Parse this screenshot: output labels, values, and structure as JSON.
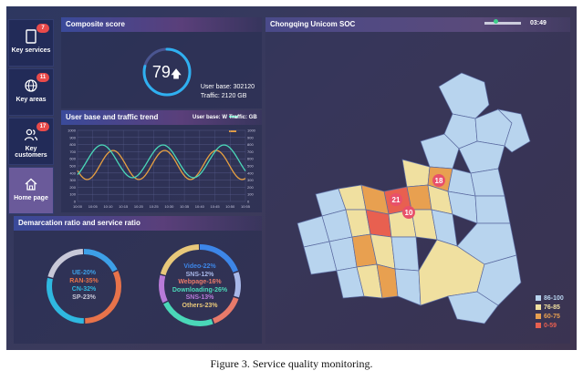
{
  "nav": {
    "items": [
      {
        "label": "Key services",
        "badge": "7"
      },
      {
        "label": "Key areas",
        "badge": "11"
      },
      {
        "label": "Key customers",
        "badge": "17"
      },
      {
        "label": "Home page",
        "badge": ""
      }
    ]
  },
  "composite": {
    "title": "Composite score",
    "score": "79",
    "score_fraction": 0.79,
    "user_base": "User base: 302120",
    "traffic": "Traffic: 2120 GB"
  },
  "trend": {
    "title": "User base and traffic trend",
    "legend_user": "User base: W",
    "legend_traffic": "Traffic: GB",
    "left_ticks": [
      "1000",
      "900",
      "800",
      "700",
      "600",
      "500",
      "400",
      "300",
      "200",
      "100",
      "0"
    ],
    "right_ticks": [
      "1000",
      "900",
      "800",
      "700",
      "600",
      "500",
      "400",
      "300",
      "200",
      "100",
      "0"
    ],
    "x_ticks": [
      "10:00",
      "10:05",
      "10:10",
      "10:15",
      "10:20",
      "10:25",
      "10:30",
      "10:35",
      "10:40",
      "10:45",
      "10:50",
      "10:55"
    ]
  },
  "ratio": {
    "title": "Demarcation ratio and service ratio",
    "left_ring": [
      {
        "label": "UE-20%",
        "value": 20,
        "color": "#3da0e8"
      },
      {
        "label": "RAN-35%",
        "value": 35,
        "color": "#e8734a"
      },
      {
        "label": "CN-32%",
        "value": 32,
        "color": "#2fb8e0"
      },
      {
        "label": "SP-23%",
        "value": 23,
        "color": "#c8c8d8"
      }
    ],
    "right_ring": [
      {
        "label": "Video-22%",
        "value": 22,
        "color": "#3d86e8"
      },
      {
        "label": "SNS-12%",
        "value": 12,
        "color": "#a8b8e8"
      },
      {
        "label": "Webpage-16%",
        "value": 16,
        "color": "#e87a6a"
      },
      {
        "label": "Downloading-26%",
        "value": 26,
        "color": "#4ad8b8"
      },
      {
        "label": "SNS-13%",
        "value": 13,
        "color": "#b87ad8"
      },
      {
        "label": "Others-23%",
        "value": 23,
        "color": "#e8c87a"
      }
    ]
  },
  "map": {
    "title": "Chongqing Unicom SOC",
    "time": "03:49",
    "markers": [
      "21",
      "18",
      "10"
    ],
    "legend": [
      {
        "label": "86-100",
        "color": "#b8d4ee"
      },
      {
        "label": "76-85",
        "color": "#f0e0a0"
      },
      {
        "label": "60-75",
        "color": "#e8a050"
      },
      {
        "label": "0-59",
        "color": "#e86050"
      }
    ]
  },
  "caption": "Figure 3. Service quality monitoring."
}
